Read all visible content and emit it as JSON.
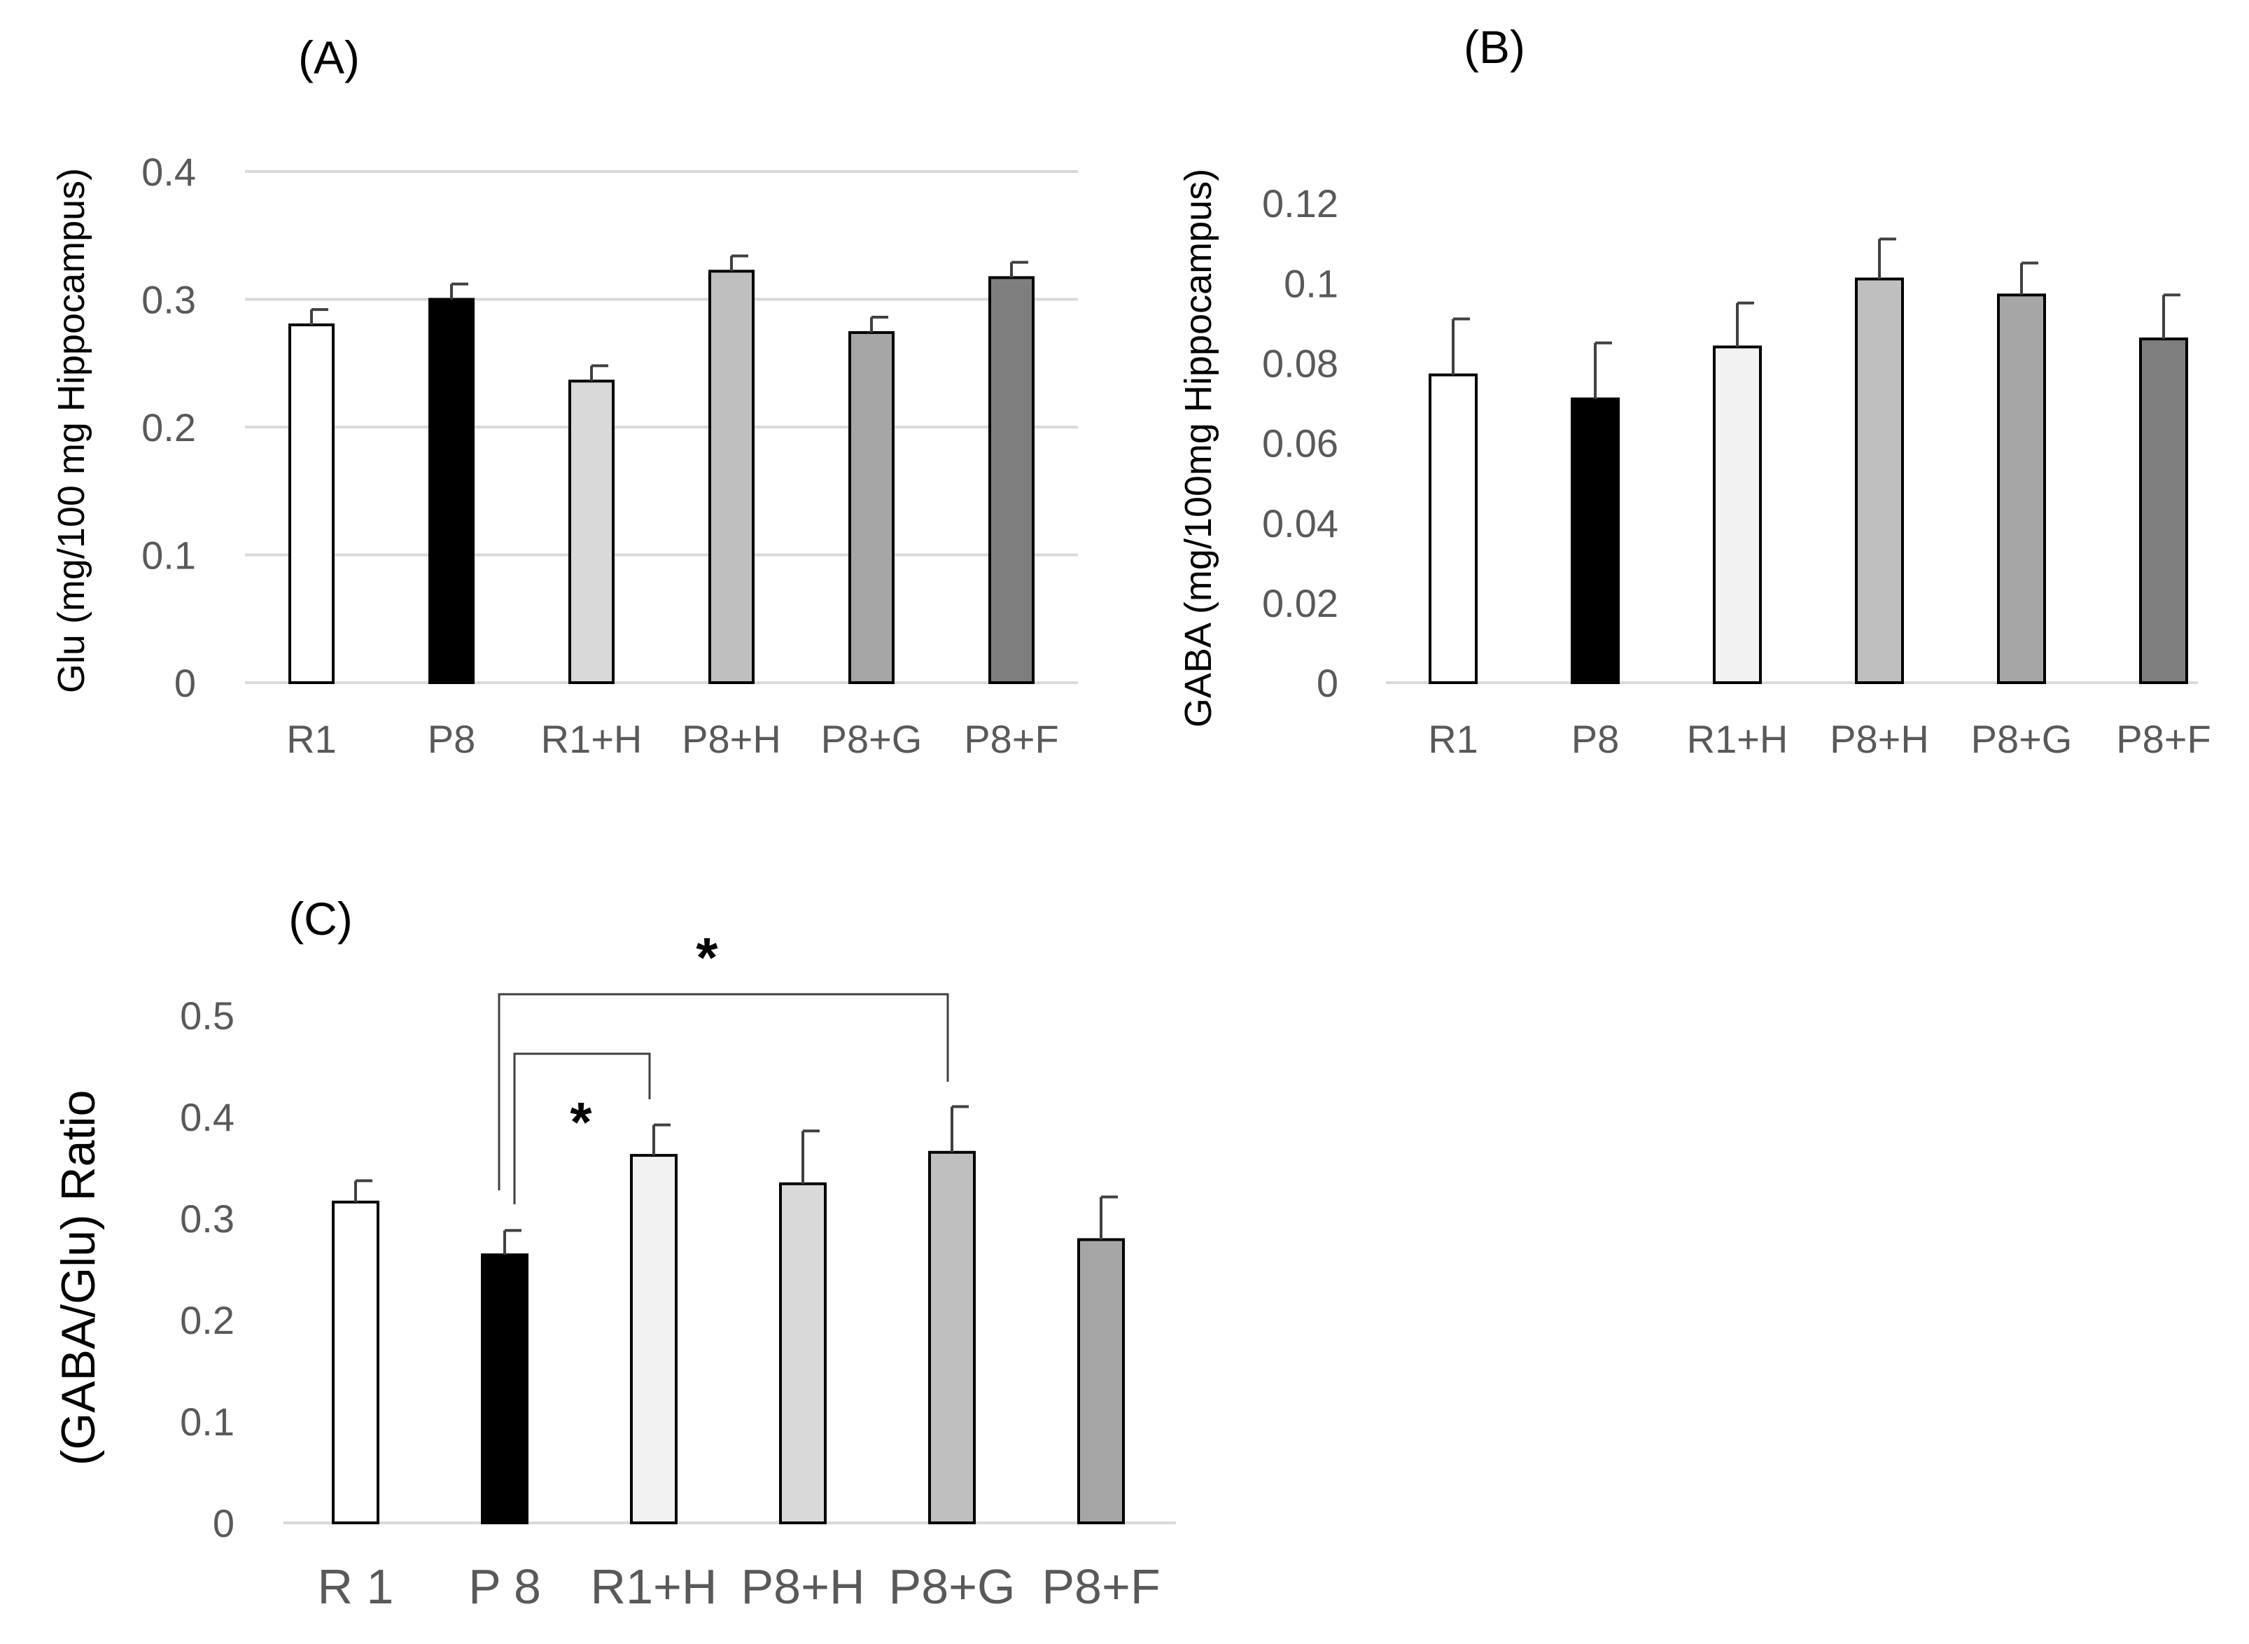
{
  "chart_data": [
    {
      "id": "A",
      "type": "bar",
      "title": "(A)",
      "xlabel": "",
      "ylabel": "Glu (mg/100 mg Hippocampus)",
      "categories": [
        "R1",
        "P8",
        "R1+H",
        "P8+H",
        "P8+G",
        "P8+F"
      ],
      "values": [
        0.28,
        0.3,
        0.236,
        0.322,
        0.274,
        0.317
      ],
      "errors": [
        0.012,
        0.012,
        0.012,
        0.012,
        0.012,
        0.012
      ],
      "bar_colors": [
        "#ffffff",
        "#000000",
        "#d9d9d9",
        "#bfbfbf",
        "#a6a6a6",
        "#7f7f7f"
      ],
      "ylim": [
        0,
        0.4
      ],
      "ticks": [
        0,
        0.1,
        0.2,
        0.3,
        0.4
      ],
      "tick_labels": [
        "0",
        "0.1",
        "0.2",
        "0.3",
        "0.4"
      ],
      "grid": true,
      "significance": []
    },
    {
      "id": "B",
      "type": "bar",
      "title": "(B)",
      "xlabel": "",
      "ylabel": "GABA (mg/100mg Hippocampus)",
      "categories": [
        "R1",
        "P8",
        "R1+H",
        "P8+H",
        "P8+G",
        "P8+F"
      ],
      "values": [
        0.077,
        0.071,
        0.084,
        0.101,
        0.097,
        0.086
      ],
      "errors": [
        0.014,
        0.014,
        0.011,
        0.01,
        0.008,
        0.011
      ],
      "bar_colors": [
        "#ffffff",
        "#000000",
        "#f2f2f2",
        "#bfbfbf",
        "#a6a6a6",
        "#7f7f7f"
      ],
      "ylim": [
        0,
        0.12
      ],
      "ticks": [
        0,
        0.02,
        0.04,
        0.06,
        0.08,
        0.1,
        0.12
      ],
      "tick_labels": [
        "0",
        "0.02",
        "0.04",
        "0.06",
        "0.08",
        "0.1",
        "0.12"
      ],
      "grid": false,
      "significance": []
    },
    {
      "id": "C",
      "type": "bar",
      "title": "(C)",
      "xlabel": "",
      "ylabel": "(GABA/Glu) Ratio",
      "categories": [
        "R 1",
        "P 8",
        "R1+H",
        "P8+H",
        "P8+G",
        "P8+F"
      ],
      "values": [
        0.316,
        0.264,
        0.362,
        0.334,
        0.365,
        0.279
      ],
      "errors": [
        0.021,
        0.024,
        0.03,
        0.052,
        0.045,
        0.042
      ],
      "bar_colors": [
        "#ffffff",
        "#000000",
        "#f2f2f2",
        "#d9d9d9",
        "#bfbfbf",
        "#a6a6a6"
      ],
      "ylim": [
        0,
        0.5
      ],
      "ticks": [
        0,
        0.1,
        0.2,
        0.3,
        0.4,
        0.5
      ],
      "tick_labels": [
        "0",
        "0.1",
        "0.2",
        "0.3",
        "0.4",
        "0.5"
      ],
      "grid": false,
      "significance": [
        {
          "from": "P 8",
          "to": "P8+G",
          "label": "*"
        },
        {
          "from": "P 8",
          "to": "R1+H",
          "label": "*"
        }
      ]
    }
  ],
  "colors": {
    "grid": "#d9d9d9",
    "axis": "#d9d9d9",
    "tick_text": "#595959",
    "bar_edge": "#000000",
    "error_bar": "#404040"
  }
}
